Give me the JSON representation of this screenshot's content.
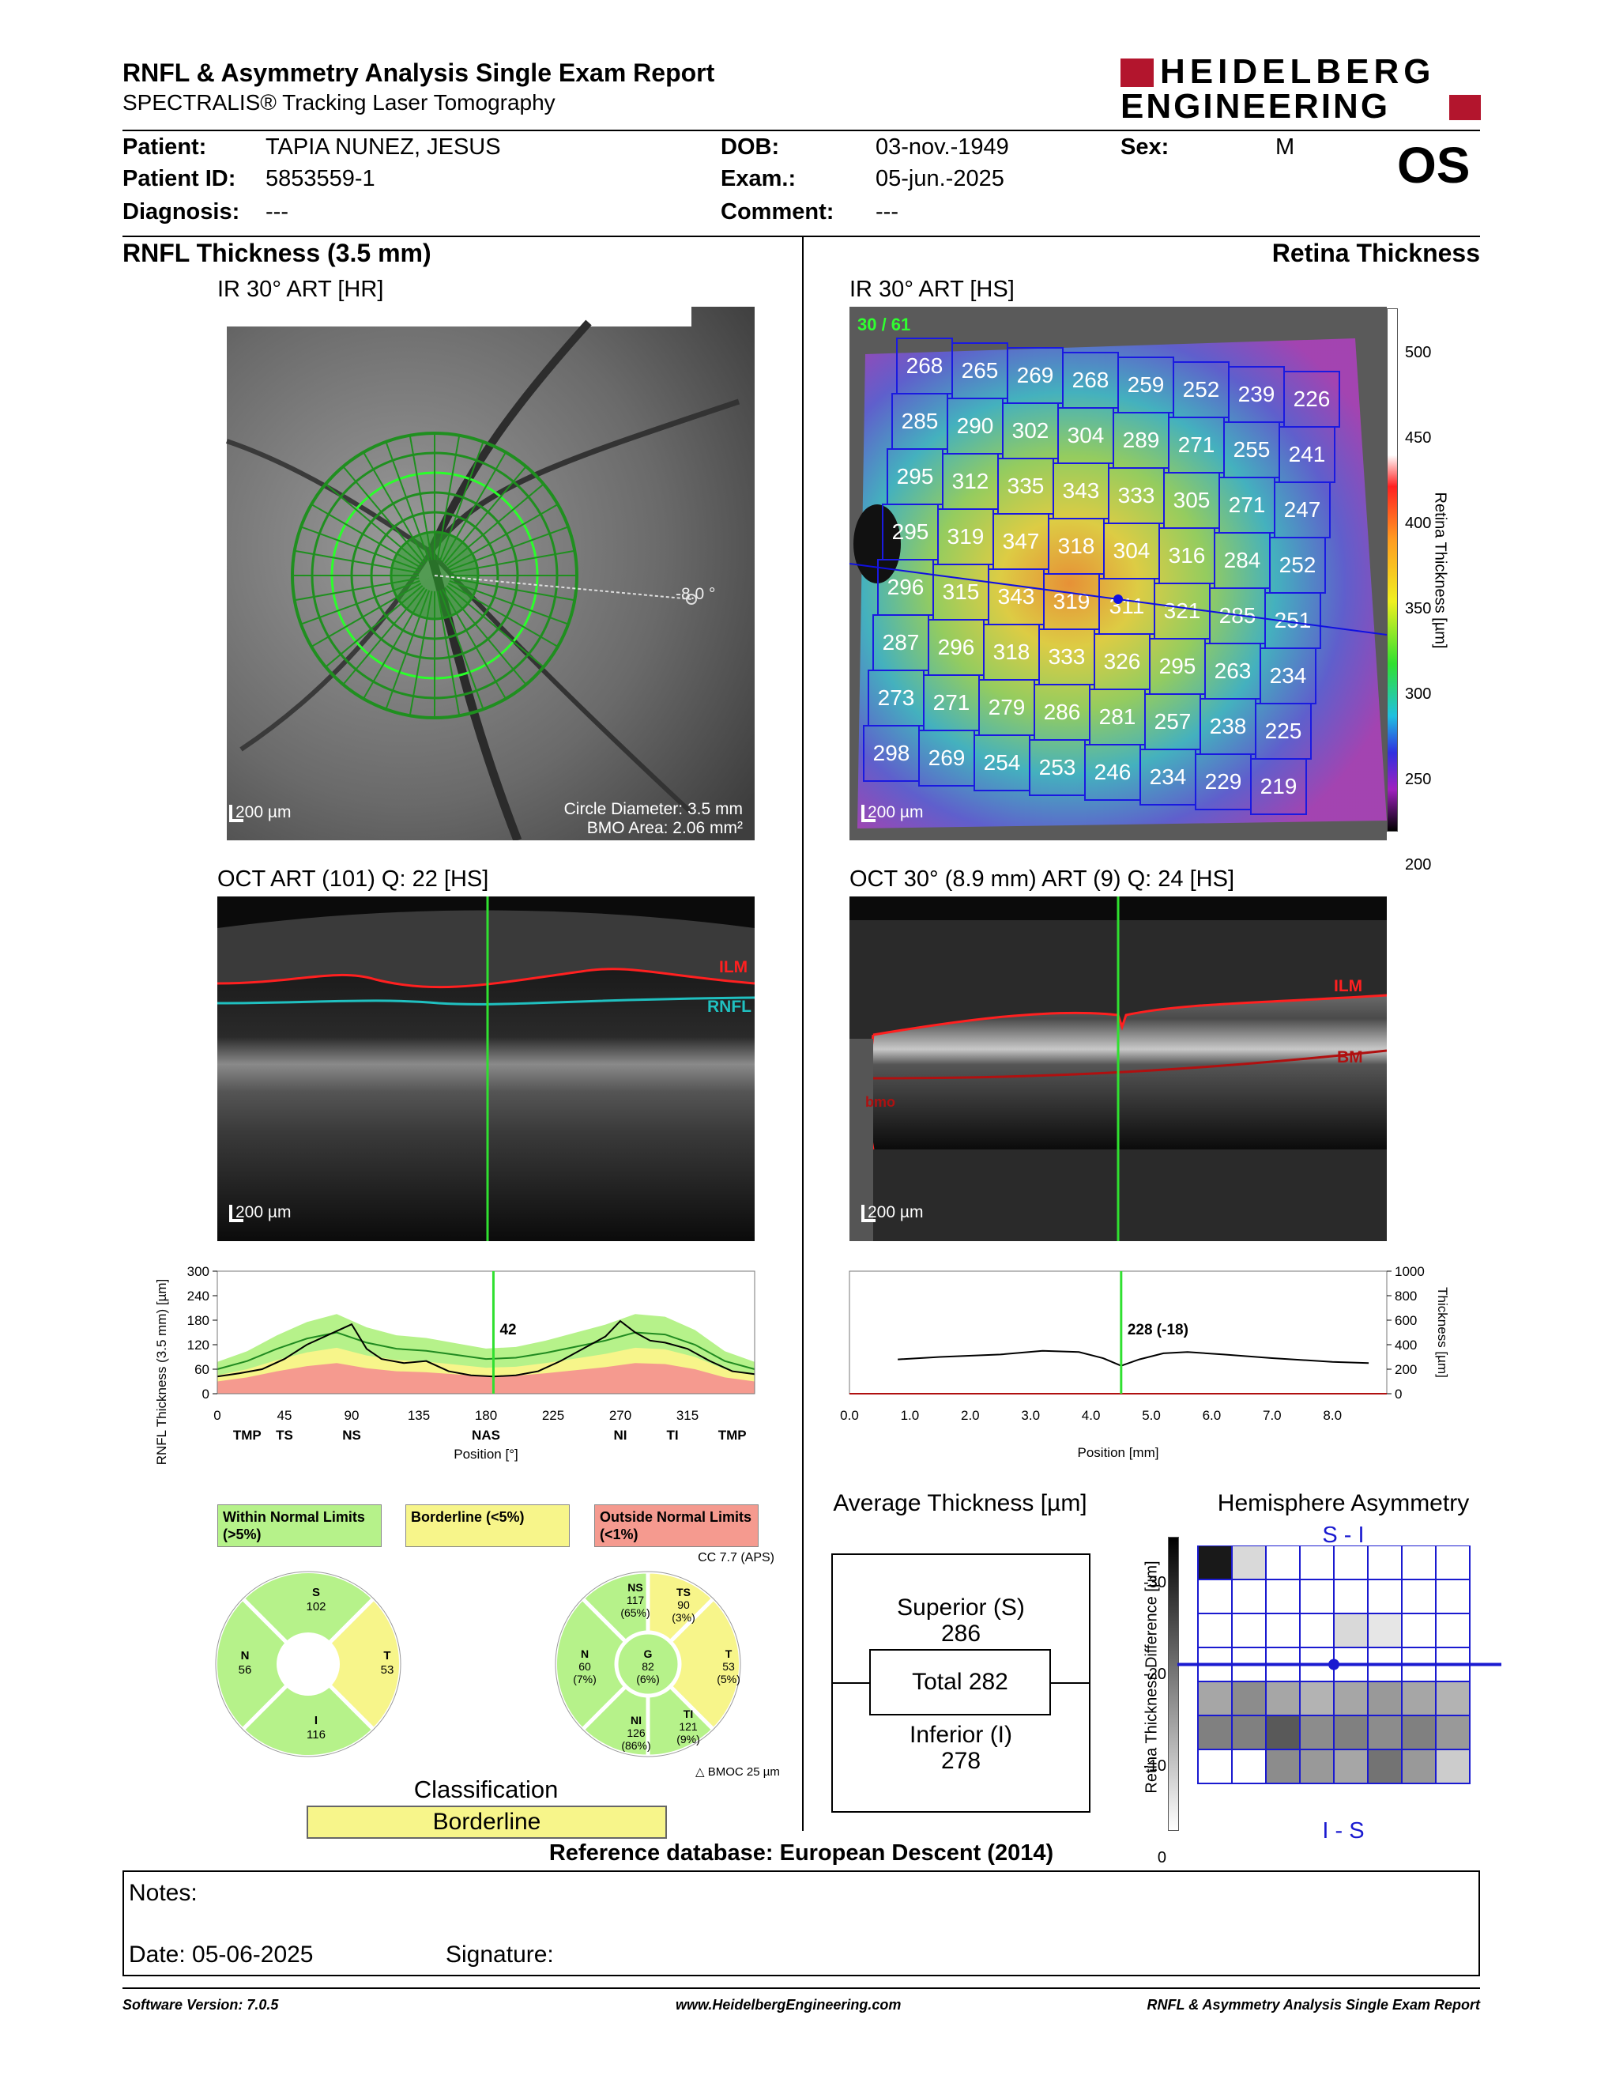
{
  "header": {
    "title": "RNFL & Asymmetry Analysis Single Exam Report",
    "subtitle": "SPECTRALIS® Tracking Laser Tomography",
    "brand_line1": "HEIDELBERG",
    "brand_line2": "ENGINEERING",
    "eye": "OS"
  },
  "patient": {
    "patient_label": "Patient:",
    "patient_value": "TAPIA NUNEZ, JESUS",
    "id_label": "Patient ID:",
    "id_value": "5853559-1",
    "diagnosis_label": "Diagnosis:",
    "diagnosis_value": "---",
    "dob_label": "DOB:",
    "dob_value": "03-nov.-1949",
    "exam_label": "Exam.:",
    "exam_value": "05-jun.-2025",
    "comment_label": "Comment:",
    "comment_value": "---",
    "sex_label": "Sex:",
    "sex_value": "M"
  },
  "left": {
    "section_title": "RNFL Thickness (3.5 mm)",
    "ir_title": "IR 30° ART [HR]",
    "ir_scale": "200 µm",
    "ir_angle": "-8.0 °",
    "circle_diameter": "Circle Diameter: 3.5 mm",
    "bmo_area": "BMO Area: 2.06 mm²",
    "oct_title": "OCT ART (101) Q: 22 [HS]",
    "oct_scale": "200 µm",
    "label_ilm": "ILM",
    "label_rnfl": "RNFL"
  },
  "right": {
    "section_title": "Retina Thickness",
    "ir_title": "IR 30° ART [HS]",
    "ir_scale": "200 µm",
    "slice_label": "30 / 61",
    "colorbar_title": "Retina Thickness [µm]",
    "colorbar_ticks": [
      "500",
      "450",
      "400",
      "350",
      "300",
      "250",
      "200"
    ],
    "grid": [
      [
        268,
        265,
        269,
        268,
        259,
        252,
        239,
        226
      ],
      [
        285,
        290,
        302,
        304,
        289,
        271,
        255,
        241
      ],
      [
        295,
        312,
        335,
        343,
        333,
        305,
        271,
        247
      ],
      [
        295,
        319,
        347,
        318,
        304,
        316,
        284,
        252
      ],
      [
        296,
        315,
        343,
        319,
        311,
        321,
        285,
        251
      ],
      [
        287,
        296,
        318,
        333,
        326,
        295,
        263,
        234
      ],
      [
        273,
        271,
        279,
        286,
        281,
        257,
        238,
        225
      ],
      [
        298,
        269,
        254,
        253,
        246,
        234,
        229,
        219
      ]
    ],
    "oct_title": "OCT 30° (8.9 mm) ART (9) Q: 24 [HS]",
    "oct_scale": "200 µm",
    "label_ilm": "ILM",
    "label_bm": "BM",
    "label_bmo": "bmo"
  },
  "chart_data": [
    {
      "type": "line",
      "ylabel": "RNFL Thickness (3.5 mm) [µm]",
      "xlabel": "Position [°]",
      "ylim": [
        0,
        300
      ],
      "xlim": [
        0,
        360
      ],
      "yticks": [
        "300",
        "240",
        "180",
        "120",
        "60",
        "0"
      ],
      "xticks": [
        "0",
        "45",
        "90",
        "135",
        "180",
        "225",
        "270",
        "315"
      ],
      "sector_labels": [
        "TMP",
        "TS",
        "NS",
        "NAS",
        "NI",
        "TI",
        "TMP"
      ],
      "marker_value": "42",
      "series": [
        {
          "name": "measured",
          "x": [
            0,
            15,
            30,
            45,
            60,
            75,
            90,
            100,
            110,
            125,
            140,
            155,
            170,
            185,
            200,
            215,
            230,
            245,
            260,
            270,
            280,
            290,
            300,
            315,
            330,
            345,
            360
          ],
          "values": [
            42,
            50,
            60,
            85,
            120,
            145,
            170,
            110,
            85,
            75,
            80,
            55,
            45,
            42,
            45,
            55,
            80,
            110,
            140,
            178,
            150,
            130,
            125,
            110,
            80,
            55,
            48
          ]
        },
        {
          "name": "normal-mean",
          "x": [
            0,
            20,
            40,
            60,
            80,
            100,
            120,
            140,
            160,
            180,
            200,
            220,
            240,
            260,
            280,
            300,
            320,
            340,
            360
          ],
          "values": [
            60,
            80,
            110,
            135,
            150,
            125,
            110,
            105,
            95,
            85,
            88,
            100,
            115,
            130,
            150,
            145,
            120,
            80,
            60
          ]
        }
      ]
    },
    {
      "type": "line",
      "ylabel": "Thickness [µm]",
      "xlabel": "Position [mm]",
      "ylim": [
        0,
        1000
      ],
      "xlim": [
        0,
        8.9
      ],
      "yticks": [
        "1000",
        "800",
        "600",
        "400",
        "200",
        "0"
      ],
      "xticks": [
        "0.0",
        "1.0",
        "2.0",
        "3.0",
        "4.0",
        "5.0",
        "6.0",
        "7.0",
        "8.0"
      ],
      "marker_value": "228 (-18)",
      "series": [
        {
          "name": "retina",
          "x": [
            0.8,
            1.5,
            2.5,
            3.2,
            3.8,
            4.2,
            4.5,
            4.8,
            5.2,
            5.6,
            6.2,
            7.0,
            8.0,
            8.6
          ],
          "values": [
            280,
            300,
            320,
            350,
            340,
            290,
            228,
            280,
            330,
            340,
            320,
            290,
            260,
            250
          ]
        }
      ]
    }
  ],
  "legend": {
    "within": "Within Normal Limits (>5%)",
    "borderline": "Borderline (<5%)",
    "outside": "Outside Normal Limits (<1%)"
  },
  "sectors_simple": {
    "S_label": "S",
    "S_value": "102",
    "N_label": "N",
    "N_value": "56",
    "T_label": "T",
    "T_value": "53",
    "I_label": "I",
    "I_value": "116"
  },
  "sectors_detail": {
    "cc": "CC 7.7 (APS)",
    "NS_label": "NS",
    "NS_value": "117",
    "NS_pct": "(65%)",
    "TS_label": "TS",
    "TS_value": "90",
    "TS_pct": "(3%)",
    "N_label": "N",
    "N_value": "60",
    "N_pct": "(7%)",
    "G_label": "G",
    "G_value": "82",
    "G_pct": "(6%)",
    "T_label": "T",
    "T_value": "53",
    "T_pct": "(5%)",
    "NI_label": "NI",
    "NI_value": "126",
    "NI_pct": "(86%)",
    "TI_label": "TI",
    "TI_value": "121",
    "TI_pct": "(9%)",
    "bmoc": "BMOC 25 µm"
  },
  "classification": {
    "title": "Classification",
    "value": "Borderline"
  },
  "average": {
    "title": "Average Thickness [µm]",
    "superior_label": "Superior (S)",
    "superior_value": "286",
    "total": "Total 282",
    "inferior_label": "Inferior (I)",
    "inferior_value": "278"
  },
  "asymmetry": {
    "title": "Hemisphere Asymmetry",
    "top_label": "S - I",
    "bottom_label": "I - S",
    "axis_label": "Retina Thickness Difference [µm]",
    "ticks": [
      "-30",
      "-20",
      "-10",
      "0"
    ],
    "grid_shades": [
      [
        0.9,
        0.15,
        0,
        0,
        0,
        0,
        0,
        0
      ],
      [
        0,
        0,
        0,
        0,
        0,
        0,
        0,
        0
      ],
      [
        0,
        0,
        0,
        0,
        0.15,
        0.1,
        0,
        0
      ],
      [
        0,
        0,
        0,
        0,
        0,
        0,
        0,
        0
      ],
      [
        0.35,
        0.45,
        0.35,
        0.3,
        0.35,
        0.4,
        0.35,
        0.3
      ],
      [
        0.5,
        0.5,
        0.65,
        0.45,
        0.5,
        0.45,
        0.5,
        0.4
      ],
      [
        0,
        0,
        0.45,
        0.4,
        0.35,
        0.55,
        0.4,
        0.2
      ]
    ]
  },
  "reference": "Reference database: European Descent (2014)",
  "notes": {
    "notes_label": "Notes:",
    "date_label": "Date: 05-06-2025",
    "signature_label": "Signature:"
  },
  "footer": {
    "software": "Software Version: 7.0.5",
    "website": "www.HeidelbergEngineering.com",
    "report": "RNFL & Asymmetry Analysis Single Exam Report"
  },
  "colors": {
    "normal": "#b6f28a",
    "borderline": "#f7f58a",
    "outside": "#f59a8f",
    "brand": "#b3152d"
  }
}
